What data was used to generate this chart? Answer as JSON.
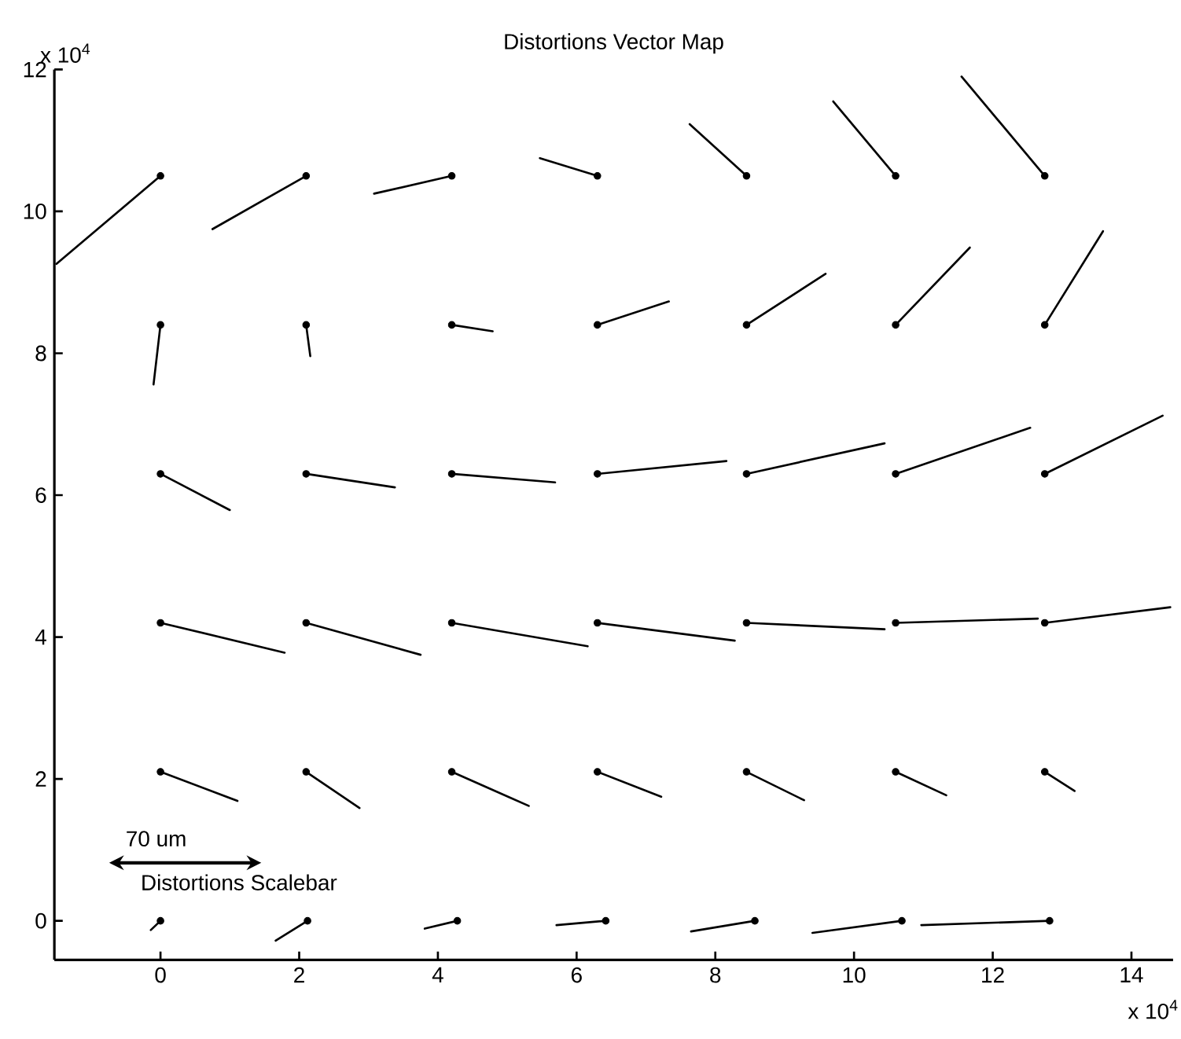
{
  "chart_data": {
    "type": "line",
    "title": "Distortions Vector Map",
    "xlim": [
      -1.53,
      14.6
    ],
    "ylim": [
      -0.55,
      12
    ],
    "xticks": [
      0,
      2,
      4,
      6,
      8,
      10,
      12,
      14
    ],
    "yticks": [
      0,
      2,
      4,
      6,
      8,
      10,
      12
    ],
    "annotations": [
      "x 10$^{4}$",
      "x 10$^{4}$",
      "70 um",
      "Distortions Scalebar"
    ],
    "series": [
      {
        "type": "scatter",
        "marker": "circle",
        "color": "#000000",
        "x": [
          0,
          2.1,
          4.2,
          6.3,
          8.45,
          10.6,
          12.75,
          0,
          2.1,
          4.2,
          6.3,
          8.45,
          10.6,
          12.75,
          0,
          2.1,
          4.2,
          6.3,
          8.45,
          10.6,
          12.75,
          0,
          2.1,
          4.2,
          6.3,
          8.45,
          10.6,
          12.75,
          0,
          2.1,
          4.2,
          6.3,
          8.45,
          10.6,
          12.75,
          0,
          2.12,
          4.28,
          6.42,
          8.57,
          10.69,
          12.82
        ],
        "values": [
          10.5,
          10.5,
          10.5,
          10.5,
          10.5,
          10.5,
          10.5,
          8.4,
          8.4,
          8.4,
          8.4,
          8.4,
          8.4,
          8.4,
          6.3,
          6.3,
          6.3,
          6.3,
          6.3,
          6.3,
          6.3,
          4.2,
          4.2,
          4.2,
          4.2,
          4.2,
          4.2,
          4.2,
          2.1,
          2.1,
          2.1,
          2.1,
          2.1,
          2.1,
          2.1,
          0,
          0,
          0,
          0,
          0,
          0,
          0
        ]
      },
      {
        "color": "#000000",
        "x": [
          0,
          -1.5
        ],
        "values": [
          10.5,
          9.26
        ]
      },
      {
        "color": "#000000",
        "x": [
          2.1,
          0.75
        ],
        "values": [
          10.5,
          9.75
        ]
      },
      {
        "color": "#000000",
        "x": [
          4.2,
          3.08
        ],
        "values": [
          10.5,
          10.25
        ]
      },
      {
        "color": "#000000",
        "x": [
          6.3,
          5.47
        ],
        "values": [
          10.5,
          10.75
        ]
      },
      {
        "color": "#000000",
        "x": [
          8.45,
          7.63
        ],
        "values": [
          10.5,
          11.23
        ]
      },
      {
        "color": "#000000",
        "x": [
          10.6,
          9.7
        ],
        "values": [
          10.5,
          11.55
        ]
      },
      {
        "color": "#000000",
        "x": [
          12.75,
          11.55
        ],
        "values": [
          10.5,
          11.9
        ]
      },
      {
        "color": "#000000",
        "x": [
          0,
          -0.1
        ],
        "values": [
          8.4,
          7.56
        ]
      },
      {
        "color": "#000000",
        "x": [
          2.1,
          2.16
        ],
        "values": [
          8.4,
          7.96
        ]
      },
      {
        "color": "#000000",
        "x": [
          4.2,
          4.79
        ],
        "values": [
          8.4,
          8.31
        ]
      },
      {
        "color": "#000000",
        "x": [
          6.3,
          7.33
        ],
        "values": [
          8.4,
          8.73
        ]
      },
      {
        "color": "#000000",
        "x": [
          8.45,
          9.59
        ],
        "values": [
          8.4,
          9.12
        ]
      },
      {
        "color": "#000000",
        "x": [
          10.6,
          11.67
        ],
        "values": [
          8.4,
          9.49
        ]
      },
      {
        "color": "#000000",
        "x": [
          12.75,
          13.59
        ],
        "values": [
          8.4,
          9.72
        ]
      },
      {
        "color": "#000000",
        "x": [
          0,
          1.0
        ],
        "values": [
          6.3,
          5.79
        ]
      },
      {
        "color": "#000000",
        "x": [
          2.1,
          3.38
        ],
        "values": [
          6.3,
          6.11
        ]
      },
      {
        "color": "#000000",
        "x": [
          4.2,
          5.69
        ],
        "values": [
          6.3,
          6.18
        ]
      },
      {
        "color": "#000000",
        "x": [
          6.3,
          8.16
        ],
        "values": [
          6.3,
          6.48
        ]
      },
      {
        "color": "#000000",
        "x": [
          8.45,
          10.44
        ],
        "values": [
          6.3,
          6.73
        ]
      },
      {
        "color": "#000000",
        "x": [
          10.6,
          12.54
        ],
        "values": [
          6.3,
          6.95
        ]
      },
      {
        "color": "#000000",
        "x": [
          12.75,
          14.45
        ],
        "values": [
          6.3,
          7.12
        ]
      },
      {
        "color": "#000000",
        "x": [
          0,
          1.79
        ],
        "values": [
          4.2,
          3.78
        ]
      },
      {
        "color": "#000000",
        "x": [
          2.1,
          3.75
        ],
        "values": [
          4.2,
          3.75
        ]
      },
      {
        "color": "#000000",
        "x": [
          4.2,
          6.16
        ],
        "values": [
          4.2,
          3.87
        ]
      },
      {
        "color": "#000000",
        "x": [
          6.3,
          8.28
        ],
        "values": [
          4.2,
          3.95
        ]
      },
      {
        "color": "#000000",
        "x": [
          8.45,
          10.44
        ],
        "values": [
          4.2,
          4.11
        ]
      },
      {
        "color": "#000000",
        "x": [
          10.6,
          12.65
        ],
        "values": [
          4.2,
          4.26
        ]
      },
      {
        "color": "#000000",
        "x": [
          12.75,
          14.56
        ],
        "values": [
          4.2,
          4.42
        ]
      },
      {
        "color": "#000000",
        "x": [
          0,
          1.11
        ],
        "values": [
          2.1,
          1.69
        ]
      },
      {
        "color": "#000000",
        "x": [
          2.1,
          2.87
        ],
        "values": [
          2.1,
          1.59
        ]
      },
      {
        "color": "#000000",
        "x": [
          4.2,
          5.31
        ],
        "values": [
          2.1,
          1.62
        ]
      },
      {
        "color": "#000000",
        "x": [
          6.3,
          7.22
        ],
        "values": [
          2.1,
          1.75
        ]
      },
      {
        "color": "#000000",
        "x": [
          8.45,
          9.28
        ],
        "values": [
          2.1,
          1.7
        ]
      },
      {
        "color": "#000000",
        "x": [
          10.6,
          11.33
        ],
        "values": [
          2.1,
          1.77
        ]
      },
      {
        "color": "#000000",
        "x": [
          12.75,
          13.18
        ],
        "values": [
          2.1,
          1.83
        ]
      },
      {
        "color": "#000000",
        "x": [
          0,
          -0.14
        ],
        "values": [
          0,
          -0.13
        ]
      },
      {
        "color": "#000000",
        "x": [
          2.12,
          1.66
        ],
        "values": [
          0,
          -0.28
        ]
      },
      {
        "color": "#000000",
        "x": [
          4.28,
          3.81
        ],
        "values": [
          0,
          -0.11
        ]
      },
      {
        "color": "#000000",
        "x": [
          6.42,
          5.71
        ],
        "values": [
          0,
          -0.06
        ]
      },
      {
        "color": "#000000",
        "x": [
          8.57,
          7.65
        ],
        "values": [
          0,
          -0.15
        ]
      },
      {
        "color": "#000000",
        "x": [
          10.69,
          9.4
        ],
        "values": [
          0,
          -0.17
        ]
      },
      {
        "color": "#000000",
        "x": [
          12.82,
          10.97
        ],
        "values": [
          0,
          -0.06
        ]
      }
    ]
  }
}
